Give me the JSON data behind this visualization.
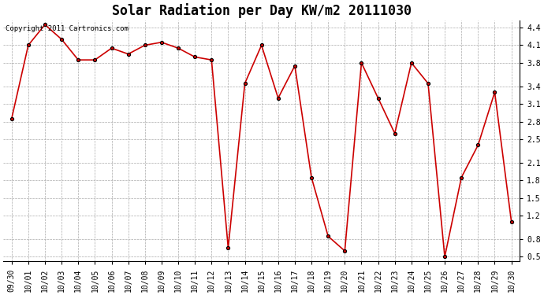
{
  "title": "Solar Radiation per Day KW/m2 20111030",
  "copyright_text": "Copyright 2011 Cartronics.com",
  "labels": [
    "09/30",
    "10/01",
    "10/02",
    "10/03",
    "10/04",
    "10/05",
    "10/06",
    "10/07",
    "10/08",
    "10/09",
    "10/10",
    "10/11",
    "10/12",
    "10/13",
    "10/14",
    "10/15",
    "10/16",
    "10/17",
    "10/18",
    "10/19",
    "10/20",
    "10/21",
    "10/22",
    "10/23",
    "10/24",
    "10/25",
    "10/26",
    "10/27",
    "10/28",
    "10/29",
    "10/30"
  ],
  "values": [
    2.85,
    4.1,
    4.45,
    4.2,
    3.85,
    3.85,
    4.05,
    3.95,
    4.1,
    4.15,
    4.05,
    3.9,
    3.85,
    0.65,
    3.45,
    4.1,
    3.2,
    3.75,
    1.85,
    0.85,
    0.6,
    3.8,
    3.2,
    2.6,
    3.8,
    3.45,
    0.5,
    1.85,
    2.4,
    3.3,
    1.1
  ],
  "line_color": "#cc0000",
  "marker": "o",
  "marker_color": "#cc0000",
  "marker_edge_color": "#000000",
  "bg_color": "#ffffff",
  "grid_color": "#aaaaaa",
  "ylim_min": 0.42,
  "ylim_max": 4.52,
  "ytick_values": [
    0.5,
    0.8,
    1.2,
    1.5,
    1.8,
    2.1,
    2.5,
    2.8,
    3.1,
    3.4,
    3.8,
    4.1,
    4.4
  ],
  "ytick_labels": [
    "0.5",
    "0.8",
    "1.2",
    "1.5",
    "1.8",
    "2.1",
    "2.5",
    "2.8",
    "3.1",
    "3.4",
    "3.8",
    "4.1",
    "4.4"
  ],
  "title_fontsize": 12,
  "tick_fontsize": 7,
  "copyright_fontsize": 6.5,
  "linewidth": 1.2,
  "markersize": 3
}
